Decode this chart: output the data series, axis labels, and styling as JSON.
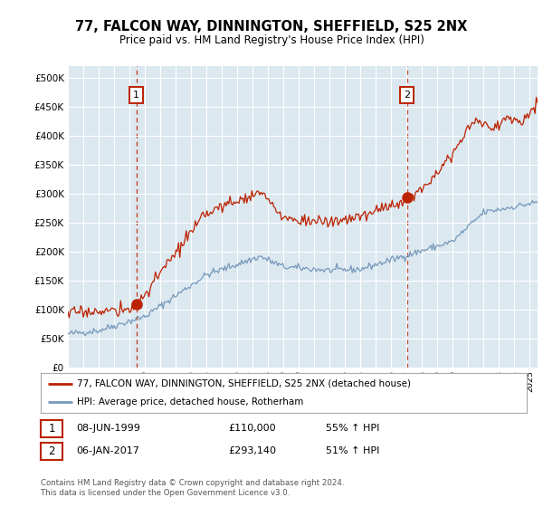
{
  "title": "77, FALCON WAY, DINNINGTON, SHEFFIELD, S25 2NX",
  "subtitle": "Price paid vs. HM Land Registry's House Price Index (HPI)",
  "legend_line1": "77, FALCON WAY, DINNINGTON, SHEFFIELD, S25 2NX (detached house)",
  "legend_line2": "HPI: Average price, detached house, Rotherham",
  "sale1_date": 1999.44,
  "sale1_price": 110000,
  "sale1_label": "1",
  "sale2_date": 2017.02,
  "sale2_price": 293140,
  "sale2_label": "2",
  "xmin": 1995,
  "xmax": 2025.5,
  "ymin": 0,
  "ymax": 520000,
  "yticks": [
    0,
    50000,
    100000,
    150000,
    200000,
    250000,
    300000,
    350000,
    400000,
    450000,
    500000
  ],
  "red_color": "#bb2200",
  "blue_color": "#7799bb",
  "background_color": "#dce8f0",
  "grid_color": "#ffffff",
  "footnote": "Contains HM Land Registry data © Crown copyright and database right 2024.\nThis data is licensed under the Open Government Licence v3.0."
}
